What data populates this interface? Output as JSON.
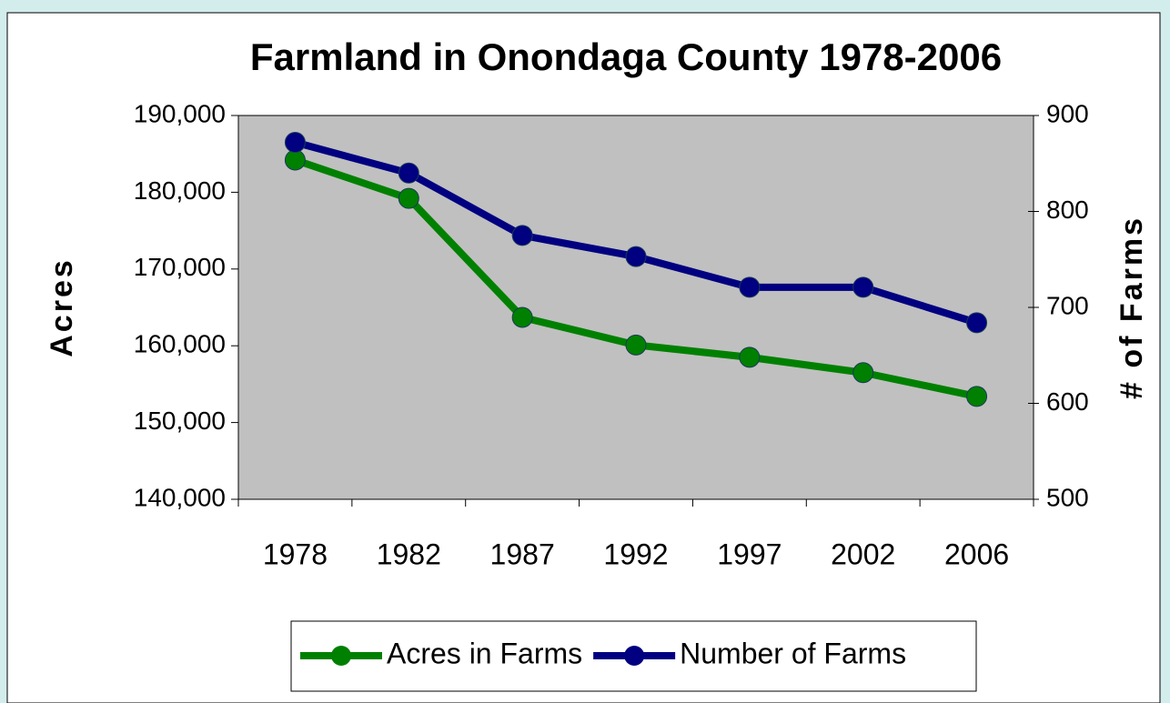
{
  "chart_data": {
    "type": "line",
    "title": "Farmland in Onondaga County 1978-2006",
    "categories": [
      "1978",
      "1982",
      "1987",
      "1992",
      "1997",
      "2002",
      "2006"
    ],
    "y_label": "Acres",
    "y2_label": "# of Farms",
    "series": [
      {
        "name": "Acres in Farms",
        "color": "#008000",
        "values": [
          184200,
          179200,
          163700,
          160100,
          158500,
          156500,
          153400
        ]
      },
      {
        "name": "Number of Farms",
        "color": "#000080",
        "axis": "y2",
        "values": [
          872,
          840,
          775,
          753,
          721,
          721,
          684
        ]
      }
    ],
    "ylim": [
      140000,
      190000
    ],
    "yticks": [
      {
        "value": 140000,
        "label": "140,000"
      },
      {
        "value": 150000,
        "label": "150,000"
      },
      {
        "value": 160000,
        "label": "160,000"
      },
      {
        "value": 170000,
        "label": "170,000"
      },
      {
        "value": 180000,
        "label": "180,000"
      },
      {
        "value": 190000,
        "label": "190,000"
      }
    ],
    "y2lim": [
      500,
      900
    ],
    "y2ticks": [
      500,
      600,
      700,
      800,
      900
    ],
    "legend": "bottom",
    "plot_background": "#c0c0c0"
  }
}
